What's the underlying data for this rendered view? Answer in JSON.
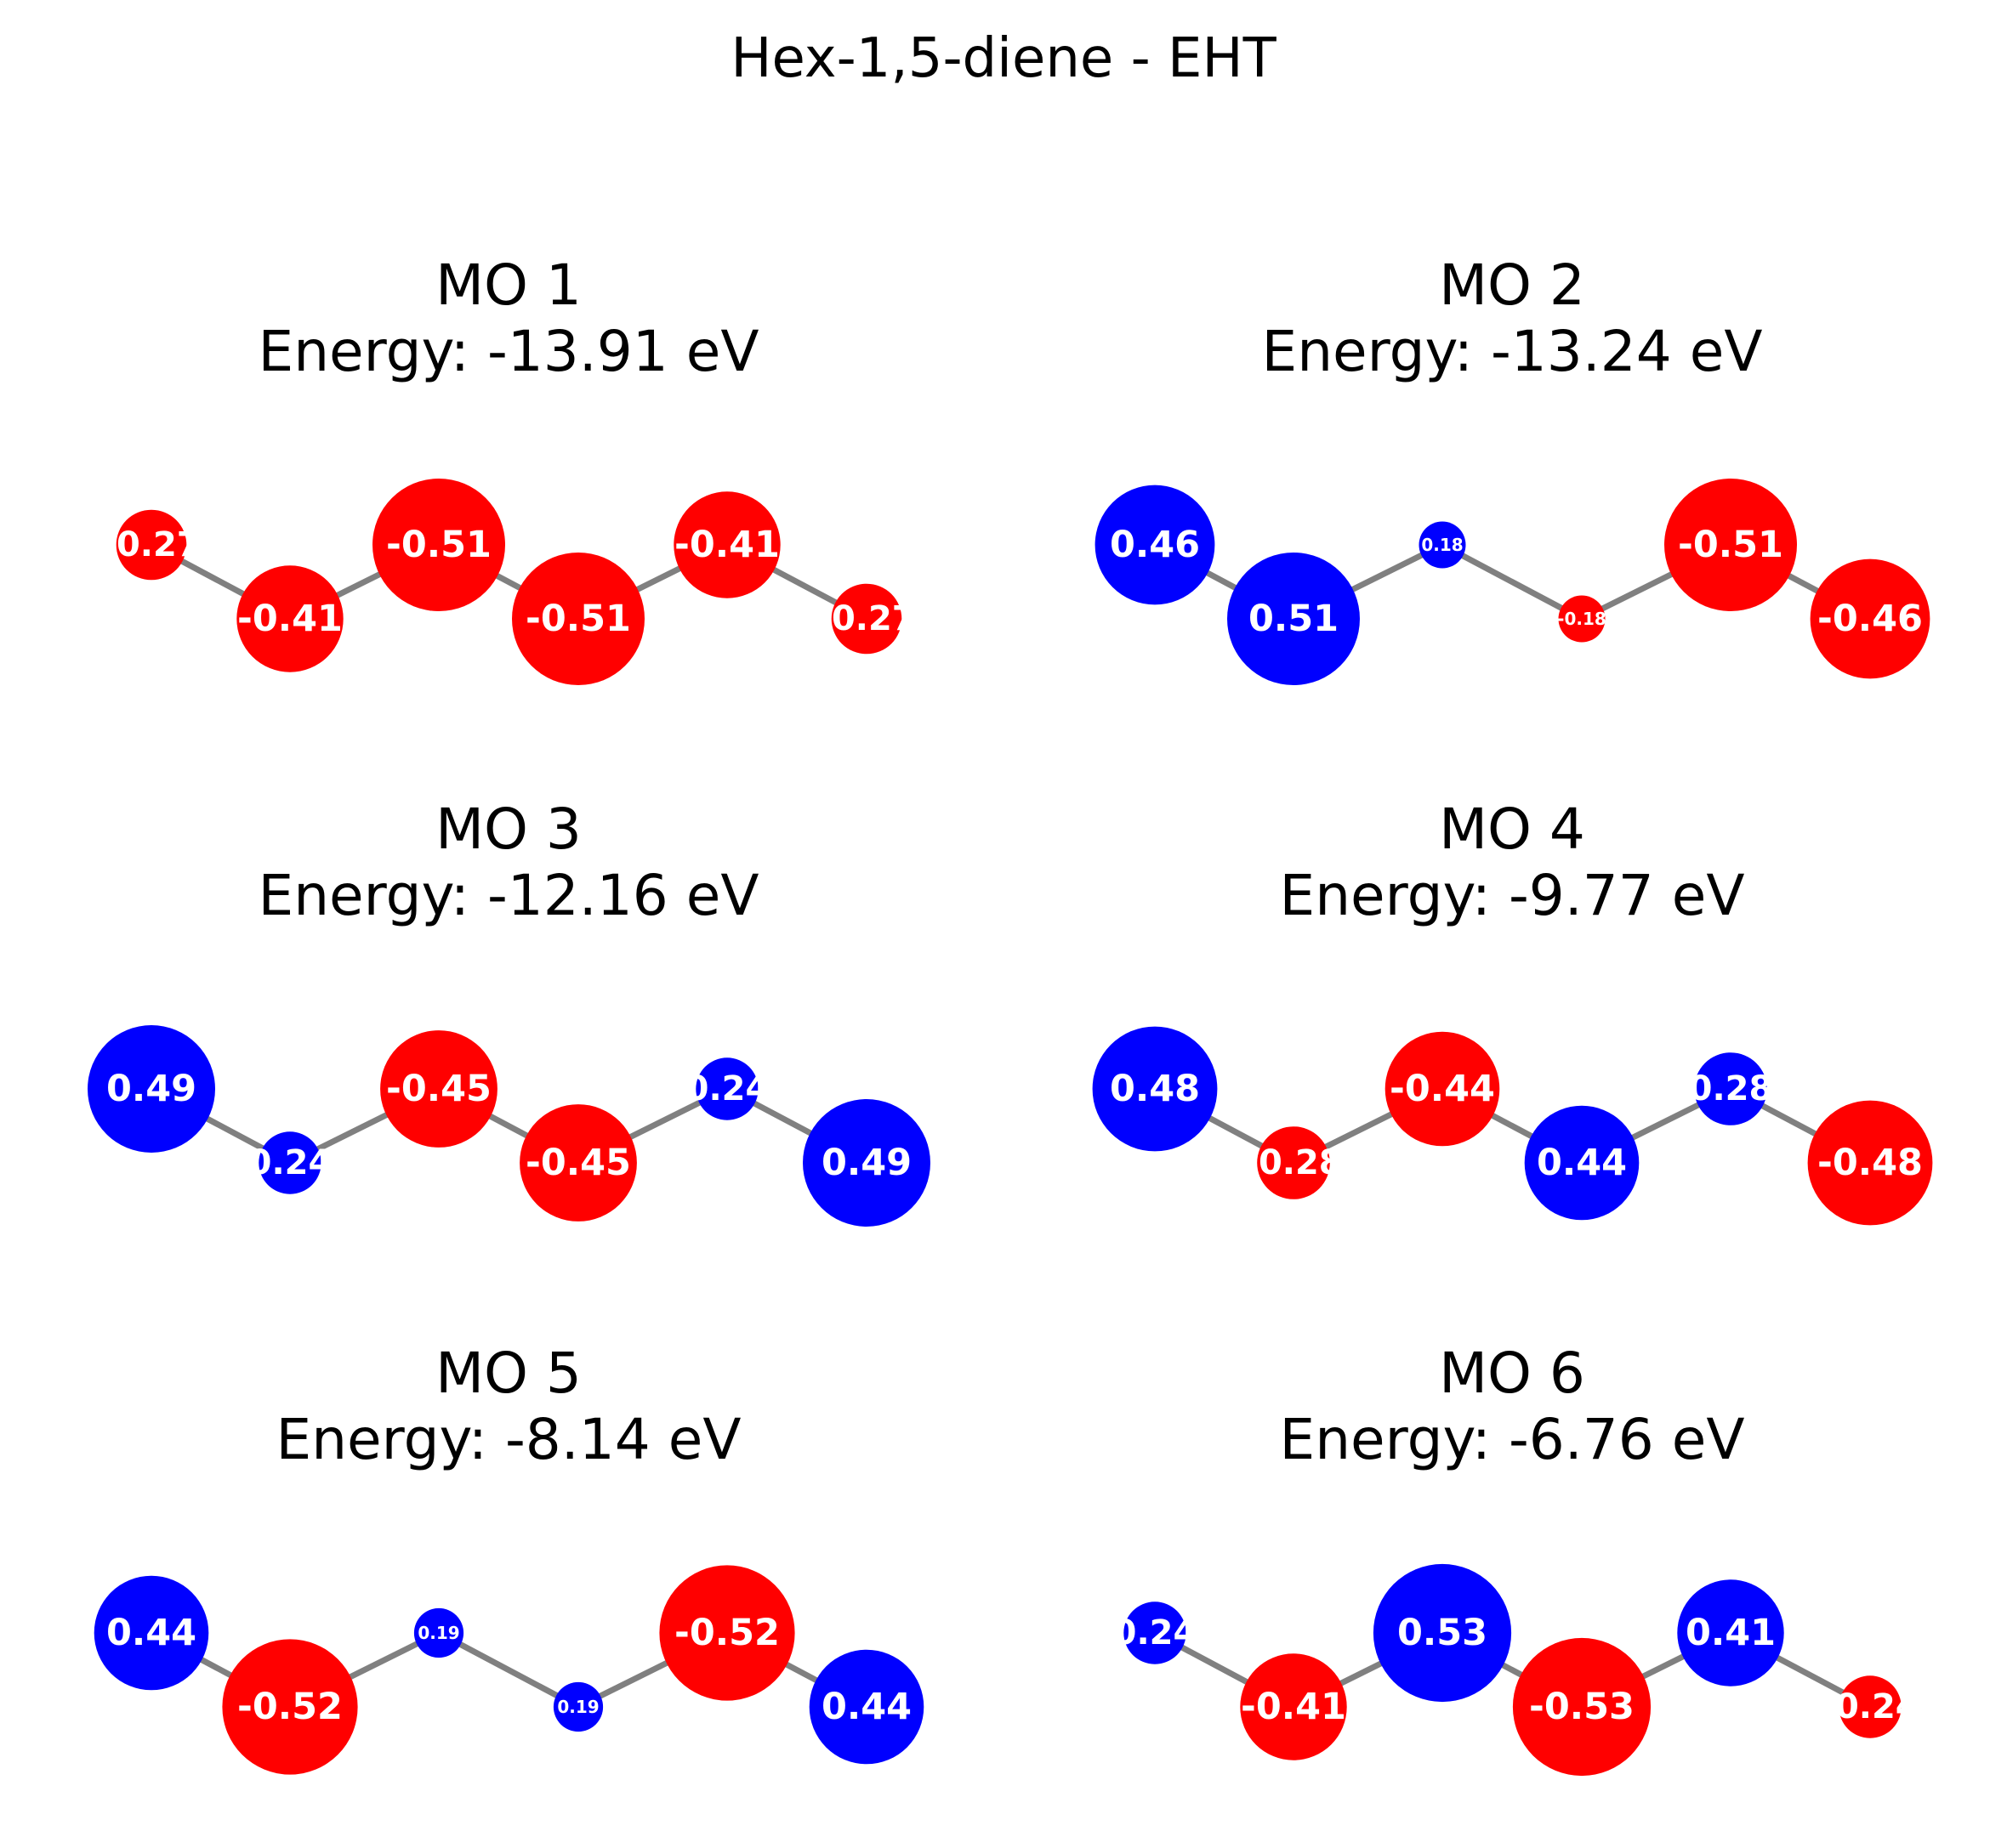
{
  "title": "Hex-1,5-diene - EHT",
  "colors": {
    "positive": "#0000ff",
    "negative": "#ff0000",
    "bond": "#808080",
    "label": "#ffffff"
  },
  "panels": [
    {
      "heading": "MO 1",
      "energy_label": "Energy: -13.91 eV",
      "coefficients": [
        -0.27,
        -0.41,
        -0.51,
        -0.51,
        -0.41,
        -0.27
      ]
    },
    {
      "heading": "MO 2",
      "energy_label": "Energy: -13.24 eV",
      "coefficients": [
        0.46,
        0.51,
        0.18,
        -0.18,
        -0.51,
        -0.46
      ]
    },
    {
      "heading": "MO 3",
      "energy_label": "Energy: -12.16 eV",
      "coefficients": [
        0.49,
        0.24,
        -0.45,
        -0.45,
        0.24,
        0.49
      ]
    },
    {
      "heading": "MO 4",
      "energy_label": "Energy: -9.77 eV",
      "coefficients": [
        0.48,
        -0.28,
        -0.44,
        0.44,
        0.28,
        -0.48
      ]
    },
    {
      "heading": "MO 5",
      "energy_label": "Energy: -8.14 eV",
      "coefficients": [
        0.44,
        -0.52,
        0.19,
        0.19,
        -0.52,
        0.44
      ]
    },
    {
      "heading": "MO 6",
      "energy_label": "Energy: -6.76 eV",
      "coefficients": [
        0.24,
        -0.41,
        0.53,
        -0.53,
        0.41,
        -0.24
      ]
    }
  ]
}
